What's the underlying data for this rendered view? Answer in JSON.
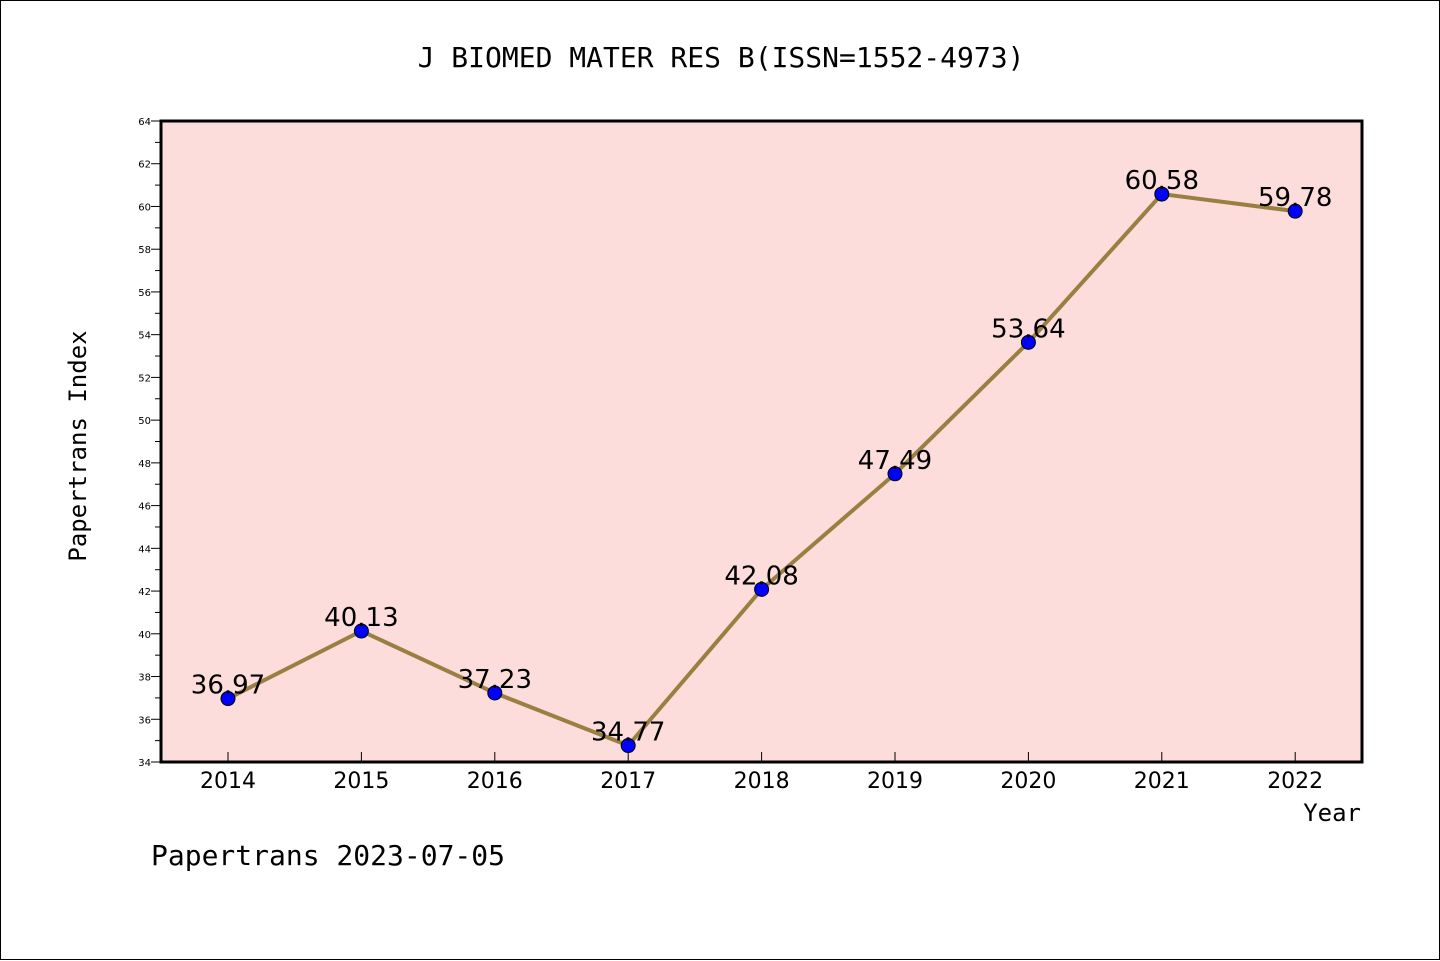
{
  "chart_data": {
    "type": "line",
    "title": "J BIOMED MATER RES B(ISSN=1552-4973)",
    "xlabel": "Year",
    "ylabel": "Papertrans Index",
    "categories": [
      "2014",
      "2015",
      "2016",
      "2017",
      "2018",
      "2019",
      "2020",
      "2021",
      "2022"
    ],
    "series": [
      {
        "values": [
          36.97,
          40.13,
          37.23,
          34.77,
          42.08,
          47.49,
          53.64,
          60.58,
          59.78
        ],
        "labels": [
          "36.97",
          "40.13",
          "37.23",
          "34.77",
          "42.08",
          "47.49",
          "53.64",
          "60.58",
          "59.78"
        ],
        "line_color": "#9a8040",
        "marker_color": "#0000ff"
      }
    ],
    "ylim": [
      34,
      64
    ],
    "yticks": [
      "34",
      "36",
      "38",
      "40",
      "42",
      "44",
      "46",
      "48",
      "50",
      "52",
      "54",
      "56",
      "58",
      "60",
      "62",
      "64"
    ],
    "plot_background": "#fddcdc",
    "grid": false
  },
  "footer": {
    "text": "Papertrans 2023-07-05"
  }
}
